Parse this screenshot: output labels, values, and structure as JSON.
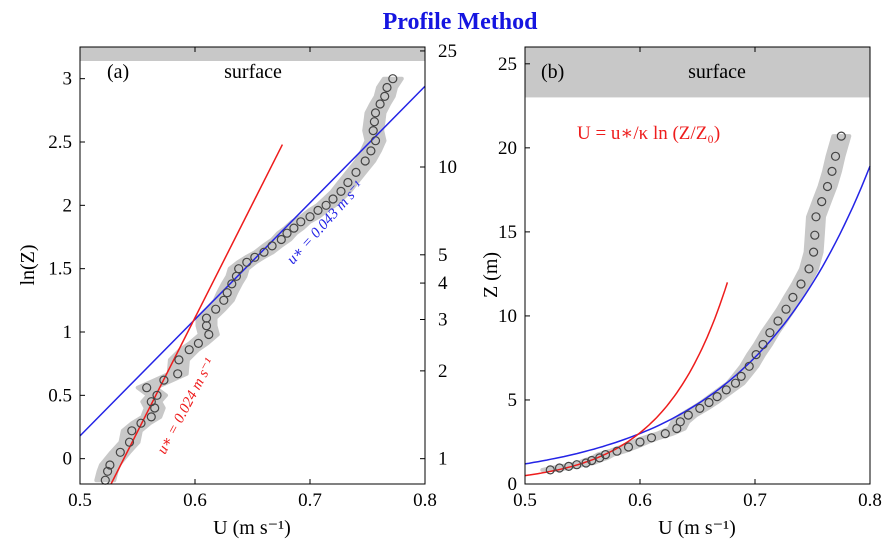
{
  "figure_title": "Profile Method",
  "colors": {
    "title": "#1515e0",
    "observations_fill": "#c8c8c8",
    "circle_stroke": "#444444",
    "fit_blue": "#2424e6",
    "fit_red": "#ee1c1c",
    "surface_band": "#c8c8c8"
  },
  "chart_data": [
    {
      "panel": "(a)",
      "type": "scatter",
      "xlabel": "U (m s⁻¹)",
      "ylabel": "ln(Z)",
      "xlim": [
        0.5,
        0.8
      ],
      "ylim": [
        -0.2,
        3.25
      ],
      "surface_ln_z": 3.12,
      "xticks": [
        0.5,
        0.6,
        0.7,
        0.8
      ],
      "xtick_labels": [
        "0.5",
        "0.6",
        "0.7",
        "0.8"
      ],
      "yticks": [
        0,
        0.5,
        1,
        1.5,
        2,
        2.5,
        3
      ],
      "ytick_labels": [
        "0",
        "0.5",
        "1",
        "1.5",
        "2",
        "2.5",
        "3"
      ],
      "right_axis_z_ticks": [
        1,
        2,
        3,
        4,
        5,
        10,
        25
      ],
      "right_axis_z_labels": [
        "1",
        "2",
        "3",
        "4",
        "5",
        "10",
        "25"
      ],
      "annotations": {
        "surface": "surface",
        "blue_fit": "u∗ = 0.043 m s⁻¹",
        "red_fit": "u∗ = 0.024 m s⁻¹"
      },
      "series": [
        {
          "kind": "observed_profile",
          "points": [
            [
              0.522,
              -0.17
            ],
            [
              0.524,
              -0.1
            ],
            [
              0.526,
              -0.05
            ],
            [
              0.535,
              0.05
            ],
            [
              0.543,
              0.13
            ],
            [
              0.545,
              0.22
            ],
            [
              0.553,
              0.28
            ],
            [
              0.562,
              0.33
            ],
            [
              0.565,
              0.4
            ],
            [
              0.562,
              0.45
            ],
            [
              0.567,
              0.5
            ],
            [
              0.558,
              0.56
            ],
            [
              0.573,
              0.62
            ],
            [
              0.585,
              0.67
            ],
            [
              0.586,
              0.78
            ],
            [
              0.595,
              0.86
            ],
            [
              0.603,
              0.91
            ],
            [
              0.612,
              0.98
            ],
            [
              0.61,
              1.05
            ],
            [
              0.61,
              1.11
            ],
            [
              0.618,
              1.18
            ],
            [
              0.625,
              1.25
            ],
            [
              0.628,
              1.31
            ],
            [
              0.632,
              1.38
            ],
            [
              0.636,
              1.44
            ],
            [
              0.638,
              1.5
            ],
            [
              0.645,
              1.55
            ],
            [
              0.652,
              1.59
            ],
            [
              0.66,
              1.63
            ],
            [
              0.667,
              1.68
            ],
            [
              0.675,
              1.73
            ],
            [
              0.68,
              1.78
            ],
            [
              0.686,
              1.82
            ],
            [
              0.692,
              1.87
            ],
            [
              0.7,
              1.91
            ],
            [
              0.707,
              1.96
            ],
            [
              0.714,
              2
            ],
            [
              0.72,
              2.05
            ],
            [
              0.727,
              2.11
            ],
            [
              0.733,
              2.18
            ],
            [
              0.74,
              2.26
            ],
            [
              0.748,
              2.35
            ],
            [
              0.753,
              2.43
            ],
            [
              0.757,
              2.51
            ],
            [
              0.755,
              2.59
            ],
            [
              0.756,
              2.66
            ],
            [
              0.757,
              2.73
            ],
            [
              0.761,
              2.8
            ],
            [
              0.765,
              2.86
            ],
            [
              0.767,
              2.93
            ],
            [
              0.772,
              3.0
            ]
          ]
        },
        {
          "kind": "log_fit",
          "name": "u∗ = 0.043 m s⁻¹",
          "x": [
            0.5,
            0.8
          ],
          "ln_z": [
            0.18,
            2.94
          ]
        },
        {
          "kind": "log_fit",
          "name": "u∗ = 0.024 m s⁻¹",
          "x": [
            0.527,
            0.676
          ],
          "ln_z": [
            -0.2,
            2.48
          ]
        }
      ]
    },
    {
      "panel": "(b)",
      "type": "scatter",
      "xlabel": "U (m s⁻¹)",
      "ylabel": "Z (m)",
      "xlim": [
        0.5,
        0.8
      ],
      "ylim": [
        0,
        26
      ],
      "surface_z": 23,
      "xticks": [
        0.5,
        0.6,
        0.7,
        0.8
      ],
      "xtick_labels": [
        "0.5",
        "0.6",
        "0.7",
        "0.8"
      ],
      "yticks": [
        0,
        5,
        10,
        15,
        20,
        25
      ],
      "ytick_labels": [
        "0",
        "5",
        "10",
        "15",
        "20",
        "25"
      ],
      "annotations": {
        "surface": "surface",
        "equation": "U = u∗/κ  ln (Z/Z₀)"
      },
      "series": [
        {
          "kind": "observed_profile",
          "points": [
            [
              0.522,
              0.84
            ],
            [
              0.53,
              0.95
            ],
            [
              0.538,
              1.05
            ],
            [
              0.545,
              1.15
            ],
            [
              0.553,
              1.25
            ],
            [
              0.558,
              1.4
            ],
            [
              0.565,
              1.55
            ],
            [
              0.57,
              1.75
            ],
            [
              0.58,
              1.95
            ],
            [
              0.59,
              2.2
            ],
            [
              0.6,
              2.5
            ],
            [
              0.61,
              2.75
            ],
            [
              0.622,
              3.0
            ],
            [
              0.632,
              3.3
            ],
            [
              0.635,
              3.7
            ],
            [
              0.642,
              4.1
            ],
            [
              0.652,
              4.5
            ],
            [
              0.66,
              4.85
            ],
            [
              0.667,
              5.2
            ],
            [
              0.675,
              5.6
            ],
            [
              0.683,
              6.0
            ],
            [
              0.688,
              6.4
            ],
            [
              0.695,
              7.0
            ],
            [
              0.701,
              7.7
            ],
            [
              0.707,
              8.3
            ],
            [
              0.713,
              9.0
            ],
            [
              0.72,
              9.7
            ],
            [
              0.727,
              10.4
            ],
            [
              0.733,
              11.1
            ],
            [
              0.74,
              11.9
            ],
            [
              0.747,
              12.8
            ],
            [
              0.751,
              13.8
            ],
            [
              0.752,
              14.8
            ],
            [
              0.753,
              15.9
            ],
            [
              0.758,
              16.8
            ],
            [
              0.763,
              17.7
            ],
            [
              0.767,
              18.6
            ],
            [
              0.77,
              19.5
            ],
            [
              0.775,
              20.7
            ]
          ]
        },
        {
          "kind": "log_fit",
          "name": "u∗ = 0.043 m s⁻¹",
          "ln_z_at_u05": 0.18,
          "ln_z_at_u08": 2.94,
          "u_range": [
            0.5,
            0.8
          ]
        },
        {
          "kind": "log_fit",
          "name": "u∗ = 0.024 m s⁻¹",
          "ln_z_at_u05": -0.688,
          "ln_z_at_u08": 4.72,
          "u_range": [
            0.5,
            0.676
          ]
        }
      ]
    }
  ]
}
